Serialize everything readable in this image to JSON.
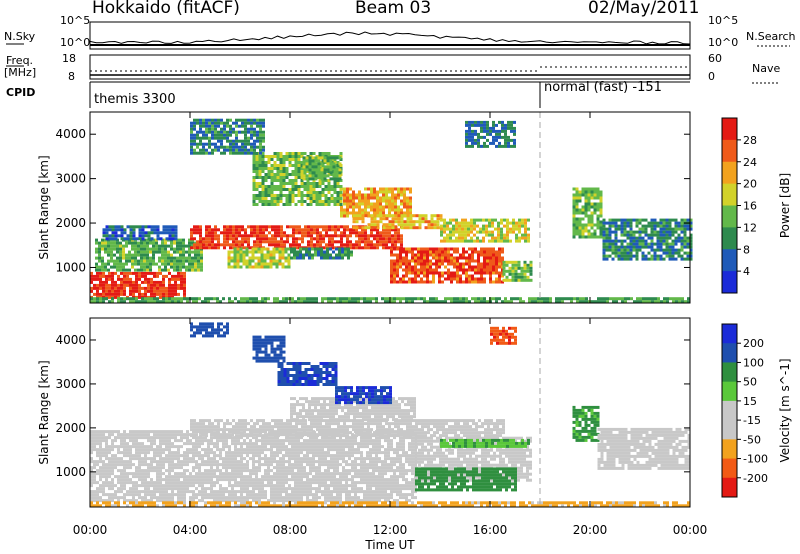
{
  "header": {
    "site": "Hokkaido (fitACF)",
    "beam": "Beam 03",
    "date": "02/May/2011"
  },
  "side_labels": {
    "nsky": "N.Sky",
    "freq": "Freq.",
    "freq_unit": "[MHz]",
    "cpid": "CPID",
    "nsearch": "N.Search",
    "nave": "Nave"
  },
  "strip_ticks": {
    "nsky_top": "10^5",
    "nsky_bottom": "10^0",
    "freq_top": "18",
    "freq_bottom": "8",
    "nsearch_top": "10^5",
    "nsearch_bottom": "10^0",
    "nave_top": "60",
    "nave_bottom": "0"
  },
  "cpid_segments": [
    {
      "label": "themis 3300",
      "start": "00:00",
      "end": "18:00"
    },
    {
      "label": "normal (fast) -151",
      "start": "18:00",
      "end": "00:00"
    }
  ],
  "colors": {
    "power_scale": [
      "#1b2bd8",
      "#1f5ab8",
      "#2e8a4e",
      "#62b84a",
      "#d2d22a",
      "#f2a21e",
      "#ef5a1a",
      "#e41a14",
      "#e41a14"
    ],
    "velocity_scale": [
      "#e41a14",
      "#f25a15",
      "#f2a21e",
      "#c8c8c8",
      "#c8c8c8",
      "#5ac83a",
      "#2f8f3f",
      "#1f4fae",
      "#1b2bd8"
    ],
    "gray": "#c8c8c8"
  },
  "chart_data": [
    {
      "type": "heatmap",
      "title": "",
      "xlabel": "Time UT",
      "ylabel": "Slant Range [km]",
      "x_ticks": [
        "00:00",
        "04:00",
        "08:00",
        "12:00",
        "16:00",
        "20:00",
        "00:00"
      ],
      "x_range_hours": [
        0,
        24
      ],
      "y_ticks": [
        "1000",
        "2000",
        "3000",
        "4000"
      ],
      "ylim": [
        200,
        4500
      ],
      "colorbar": {
        "label": "Power [dB]",
        "ticks": [
          "4",
          "8",
          "12",
          "16",
          "20",
          "24",
          "28"
        ],
        "range": [
          0,
          32
        ]
      },
      "regions": [
        {
          "t0": 0.0,
          "t1": 3.8,
          "r0": 350,
          "r1": 900,
          "value": 29
        },
        {
          "t0": 0.2,
          "t1": 4.5,
          "r0": 950,
          "r1": 1650,
          "value": 13
        },
        {
          "t0": 0.5,
          "t1": 3.5,
          "r0": 1650,
          "r1": 1950,
          "value": 6
        },
        {
          "t0": 4.0,
          "t1": 12.5,
          "r0": 1450,
          "r1": 1950,
          "value": 28
        },
        {
          "t0": 5.5,
          "t1": 8.0,
          "r0": 1000,
          "r1": 1450,
          "value": 17
        },
        {
          "t0": 8.0,
          "t1": 10.5,
          "r0": 1200,
          "r1": 1450,
          "value": 10
        },
        {
          "t0": 10.0,
          "t1": 12.8,
          "r0": 2150,
          "r1": 2800,
          "value": 22
        },
        {
          "t0": 10.5,
          "t1": 14.0,
          "r0": 1900,
          "r1": 2200,
          "value": 21
        },
        {
          "t0": 12.0,
          "t1": 16.5,
          "r0": 700,
          "r1": 1450,
          "value": 27
        },
        {
          "t0": 14.0,
          "t1": 17.6,
          "r0": 1600,
          "r1": 2100,
          "value": 18
        },
        {
          "t0": 16.5,
          "t1": 17.6,
          "r0": 700,
          "r1": 1150,
          "value": 14
        },
        {
          "t0": 6.5,
          "t1": 10.0,
          "r0": 2400,
          "r1": 3600,
          "value": 14
        },
        {
          "t0": 4.0,
          "t1": 7.0,
          "r0": 3600,
          "r1": 4350,
          "value": 9
        },
        {
          "t0": 8.5,
          "t1": 10.0,
          "r0": 3000,
          "r1": 3500,
          "value": 13
        },
        {
          "t0": 15.0,
          "t1": 17.0,
          "r0": 3700,
          "r1": 4300,
          "value": 8
        },
        {
          "t0": 19.3,
          "t1": 20.5,
          "r0": 1700,
          "r1": 2800,
          "value": 14
        },
        {
          "t0": 20.5,
          "t1": 24.0,
          "r0": 1200,
          "r1": 2100,
          "value": 9
        },
        {
          "t0": 0.0,
          "t1": 24.0,
          "r0": 200,
          "r1": 330,
          "value": 12
        }
      ]
    },
    {
      "type": "heatmap",
      "title": "",
      "xlabel": "Time UT",
      "ylabel": "Slant Range [km]",
      "x_ticks": [
        "00:00",
        "04:00",
        "08:00",
        "12:00",
        "16:00",
        "20:00",
        "00:00"
      ],
      "x_range_hours": [
        0,
        24
      ],
      "y_ticks": [
        "1000",
        "2000",
        "3000",
        "4000"
      ],
      "ylim": [
        200,
        4500
      ],
      "colorbar": {
        "label": "Velocity [m s^-1]",
        "ticks": [
          "200",
          "100",
          "50",
          "15",
          "-15",
          "-50",
          "-100",
          "-200"
        ]
      },
      "regions": [
        {
          "t0": 0.0,
          "t1": 13.0,
          "r0": 350,
          "r1": 1950,
          "value": 0
        },
        {
          "t0": 4.0,
          "t1": 16.5,
          "r0": 1800,
          "r1": 2200,
          "value": 0
        },
        {
          "t0": 13.0,
          "t1": 17.6,
          "r0": 800,
          "r1": 1800,
          "value": 0
        },
        {
          "t0": 8.0,
          "t1": 13.0,
          "r0": 2200,
          "r1": 2700,
          "value": 0
        },
        {
          "t0": 13.0,
          "t1": 17.0,
          "r0": 600,
          "r1": 1100,
          "value": 70
        },
        {
          "t0": 14.0,
          "t1": 17.5,
          "r0": 1550,
          "r1": 1750,
          "value": 45
        },
        {
          "t0": 7.5,
          "t1": 9.8,
          "r0": 3000,
          "r1": 3500,
          "value": 180
        },
        {
          "t0": 9.8,
          "t1": 12.0,
          "r0": 2600,
          "r1": 2950,
          "value": 200
        },
        {
          "t0": 6.5,
          "t1": 7.8,
          "r0": 3500,
          "r1": 4100,
          "value": 160
        },
        {
          "t0": 16.0,
          "t1": 17.0,
          "r0": 3900,
          "r1": 4300,
          "value": -180
        },
        {
          "t0": 4.0,
          "t1": 5.5,
          "r0": 4100,
          "r1": 4400,
          "value": 150
        },
        {
          "t0": 19.3,
          "t1": 20.3,
          "r0": 1700,
          "r1": 2500,
          "value": 60
        },
        {
          "t0": 20.3,
          "t1": 24.0,
          "r0": 1100,
          "r1": 2000,
          "value": 0
        },
        {
          "t0": 0.0,
          "t1": 24.0,
          "r0": 200,
          "r1": 330,
          "value": -60
        }
      ]
    }
  ]
}
